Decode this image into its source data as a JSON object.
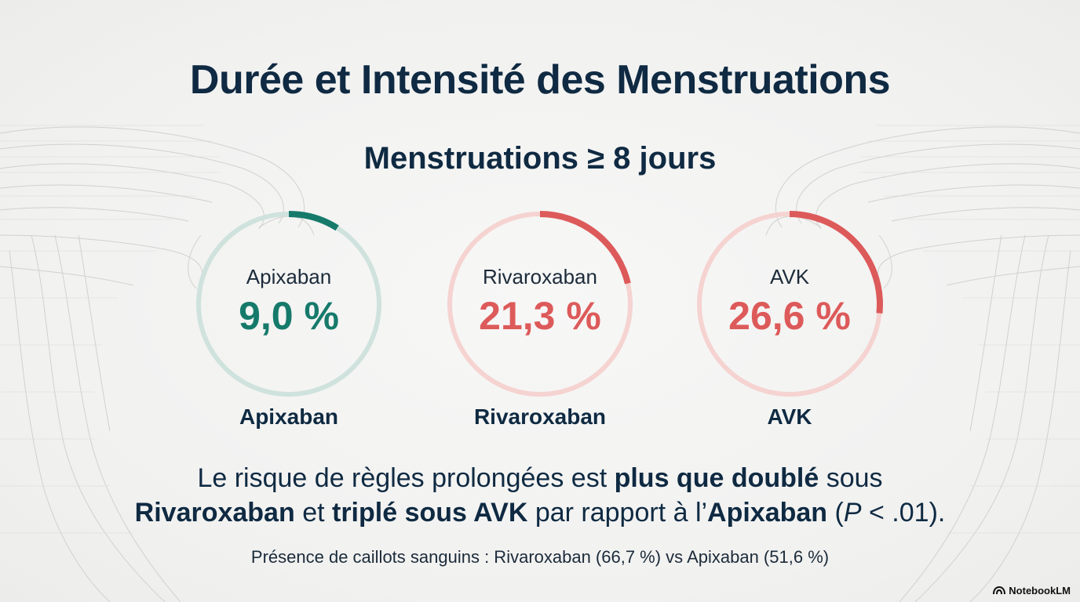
{
  "title": "Durée et Intensité des Menstruations",
  "chart_data": {
    "type": "gauge",
    "title": "Menstruations ≥ 8 jours",
    "unit": "%",
    "series": [
      {
        "name": "Apixaban",
        "value": 9.0,
        "value_label": "9,0 %",
        "color": "#167a6b",
        "track_color": "#cfe2dd"
      },
      {
        "name": "Rivaroxaban",
        "value": 21.3,
        "value_label": "21,3 %",
        "color": "#dd5a5a",
        "track_color": "#f5d3d0"
      },
      {
        "name": "AVK",
        "value": 26.6,
        "value_label": "26,6 %",
        "color": "#dd5a5a",
        "track_color": "#f5d3d0"
      }
    ]
  },
  "conclusion": {
    "part1": "Le risque de règles prolongées est ",
    "bold1": "plus que doublé",
    "part2": " sous",
    "bold2": "Rivaroxaban",
    "part3": " et ",
    "bold3": "triplé sous AVK",
    "part4": " par rapport à l’",
    "bold4": "Apixaban",
    "part5": " (",
    "italic1": "P",
    "part6": " < .01)."
  },
  "footnote": "Présence de caillots sanguins : Rivaroxaban (66,7 %) vs Apixaban (51,6 %)",
  "brand": {
    "name": "NotebookLM",
    "icon": "notebooklm-logo-icon"
  }
}
